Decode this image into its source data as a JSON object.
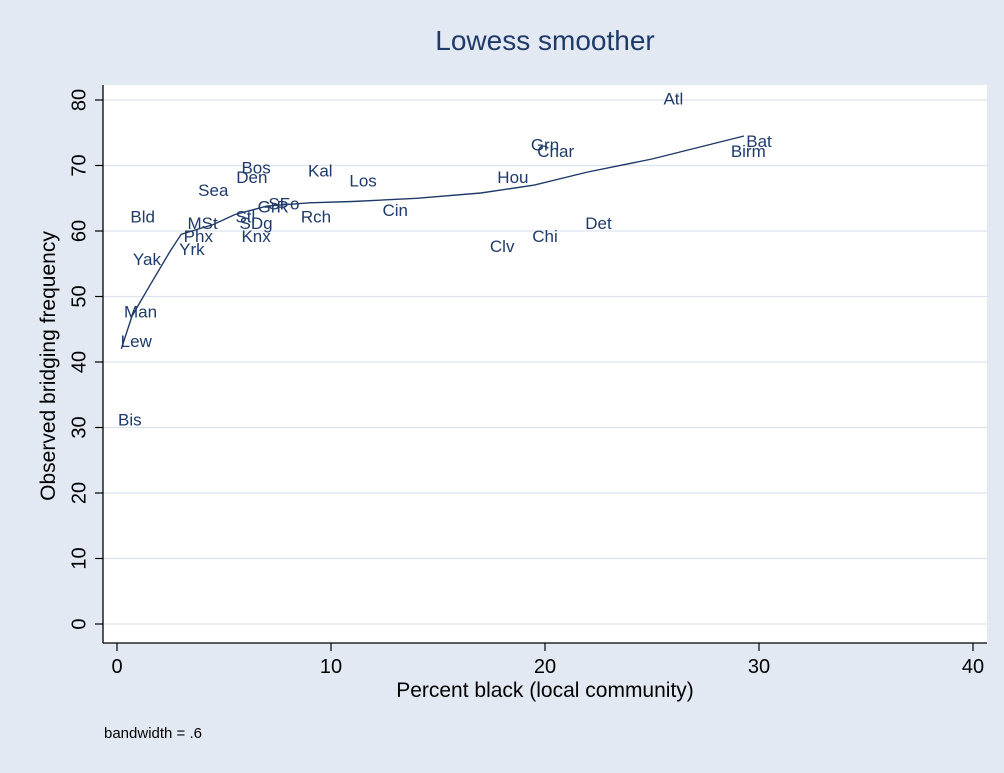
{
  "chart_data": {
    "type": "scatter",
    "title": "Lowess smoother",
    "xlabel": "Percent black (local community)",
    "ylabel": "Observed bridging frequency",
    "note": "bandwidth = .6",
    "xlim": [
      0,
      40
    ],
    "ylim": [
      0,
      80
    ],
    "xticks": [
      0,
      10,
      20,
      30,
      40
    ],
    "yticks": [
      0,
      10,
      20,
      30,
      40,
      50,
      60,
      70,
      80
    ],
    "grid": "horizontal",
    "legend": "none",
    "colors": {
      "outer_background": "#e3e9f3",
      "plot_background": "#ffffff",
      "grid": "#dde3ee",
      "text": "#1f3a68",
      "smoother_line": "#1f3a68",
      "axis": "#000000"
    },
    "points": [
      {
        "label": "Atl",
        "x": 26.0,
        "y": 80.0
      },
      {
        "label": "Bat",
        "x": 30.0,
        "y": 73.5
      },
      {
        "label": "Birm",
        "x": 29.5,
        "y": 72.0
      },
      {
        "label": "Grn",
        "x": 20.0,
        "y": 73.0
      },
      {
        "label": "Char",
        "x": 20.5,
        "y": 72.0
      },
      {
        "label": "Hou",
        "x": 18.5,
        "y": 68.0
      },
      {
        "label": "Det",
        "x": 22.5,
        "y": 61.0
      },
      {
        "label": "Chi",
        "x": 20.0,
        "y": 59.0
      },
      {
        "label": "Clv",
        "x": 18.0,
        "y": 57.5
      },
      {
        "label": "Cin",
        "x": 13.0,
        "y": 63.0
      },
      {
        "label": "Los",
        "x": 11.5,
        "y": 67.5
      },
      {
        "label": "Kal",
        "x": 9.5,
        "y": 69.0
      },
      {
        "label": "Rch",
        "x": 9.3,
        "y": 62.0
      },
      {
        "label": "Bos",
        "x": 6.5,
        "y": 69.5
      },
      {
        "label": "Den",
        "x": 6.3,
        "y": 68.0
      },
      {
        "label": "Sea",
        "x": 4.5,
        "y": 66.0
      },
      {
        "label": "SFo",
        "x": 7.8,
        "y": 64.0
      },
      {
        "label": "GrR",
        "x": 7.3,
        "y": 63.5
      },
      {
        "label": "Stl",
        "x": 6.0,
        "y": 62.0
      },
      {
        "label": "SDg",
        "x": 6.5,
        "y": 61.0
      },
      {
        "label": "Knx",
        "x": 6.5,
        "y": 59.0
      },
      {
        "label": "MSt",
        "x": 4.0,
        "y": 61.0
      },
      {
        "label": "Phx",
        "x": 3.8,
        "y": 59.0
      },
      {
        "label": "Yrk",
        "x": 3.5,
        "y": 57.0
      },
      {
        "label": "Bld",
        "x": 1.2,
        "y": 62.0
      },
      {
        "label": "Yak",
        "x": 1.4,
        "y": 55.5
      },
      {
        "label": "Man",
        "x": 1.1,
        "y": 47.5
      },
      {
        "label": "Lew",
        "x": 0.9,
        "y": 43.0
      },
      {
        "label": "Bis",
        "x": 0.6,
        "y": 31.0
      }
    ],
    "smoother": [
      {
        "x": 0.2,
        "y": 42.0
      },
      {
        "x": 0.7,
        "y": 47.0
      },
      {
        "x": 1.5,
        "y": 51.5
      },
      {
        "x": 2.5,
        "y": 57.0
      },
      {
        "x": 3.0,
        "y": 59.5
      },
      {
        "x": 3.5,
        "y": 60.0
      },
      {
        "x": 4.5,
        "y": 61.0
      },
      {
        "x": 5.5,
        "y": 62.5
      },
      {
        "x": 7.0,
        "y": 63.8
      },
      {
        "x": 9.0,
        "y": 64.3
      },
      {
        "x": 11.0,
        "y": 64.5
      },
      {
        "x": 14.0,
        "y": 65.0
      },
      {
        "x": 17.0,
        "y": 65.8
      },
      {
        "x": 19.5,
        "y": 67.0
      },
      {
        "x": 22.0,
        "y": 69.0
      },
      {
        "x": 25.0,
        "y": 71.0
      },
      {
        "x": 29.3,
        "y": 74.5
      }
    ]
  }
}
